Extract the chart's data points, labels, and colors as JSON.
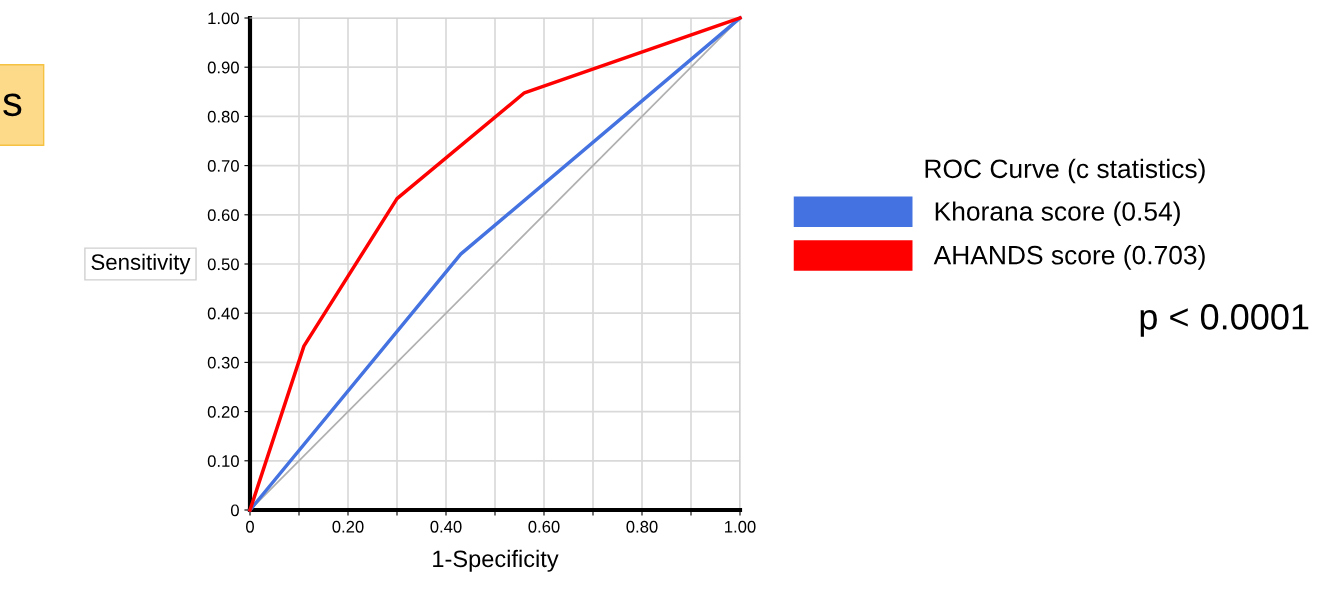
{
  "chart_data": {
    "type": "line",
    "xlabel": "1-Specificity",
    "ylabel": "Sensitivity",
    "legend_title": "ROC Curve (c statistics)",
    "series": [
      {
        "name": "Khorana score (0.54)",
        "color": "#4472e0",
        "x": [
          0,
          0.43,
          1.0
        ],
        "values": [
          0,
          0.52,
          1.0
        ]
      },
      {
        "name": "AHANDS score (0.703)",
        "color": "#ff0000",
        "x": [
          0,
          0.11,
          0.3,
          0.56,
          1.0
        ],
        "values": [
          0,
          0.333,
          0.633,
          0.848,
          1.0
        ]
      },
      {
        "color": "#b0b0b0",
        "x": [
          0,
          1.0
        ],
        "values": [
          0,
          1.0
        ]
      }
    ],
    "xlim": [
      0,
      1.0
    ],
    "ylim": [
      0,
      1.0
    ],
    "xticks": [
      0,
      {
        "value": 0.1,
        "label": null
      },
      {
        "value": 0.2,
        "label": "0.20"
      },
      {
        "value": 0.3,
        "label": null
      },
      {
        "value": 0.4,
        "label": "0.40"
      },
      {
        "value": 0.5,
        "label": null
      },
      {
        "value": 0.6,
        "label": "0.60"
      },
      {
        "value": 0.7,
        "label": null
      },
      {
        "value": 0.8,
        "label": "0.80"
      },
      {
        "value": 0.9,
        "label": null
      },
      {
        "value": 1.0,
        "label": "1.00"
      }
    ],
    "yticks": [
      0,
      {
        "value": 0.1,
        "label": "0.10"
      },
      {
        "value": 0.2,
        "label": "0.20"
      },
      {
        "value": 0.3,
        "label": "0.30"
      },
      {
        "value": 0.4,
        "label": "0.40"
      },
      {
        "value": 0.5,
        "label": "0.50"
      },
      {
        "value": 0.6,
        "label": "0.60"
      },
      {
        "value": 0.7,
        "label": "0.70"
      },
      {
        "value": 0.8,
        "label": "0.80"
      },
      {
        "value": 0.9,
        "label": "0.90"
      },
      {
        "value": 1.0,
        "label": "1.00"
      }
    ],
    "grid": true,
    "legend": "right",
    "marker": "none",
    "line_style": "solid",
    "annotations": [
      "p < 0.0001",
      "s"
    ]
  }
}
